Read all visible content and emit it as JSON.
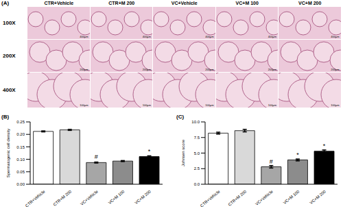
{
  "panel_a": {
    "label": "(A)",
    "columns": [
      "CTR+Vehicle",
      "CTR+M 200",
      "VC+Vehicle",
      "VC+M 100",
      "VC+M 200"
    ],
    "rows": [
      {
        "magnification": "100X",
        "scale_bar": "400μm"
      },
      {
        "magnification": "200X",
        "scale_bar": "200μm"
      },
      {
        "magnification": "400X",
        "scale_bar": "100μm"
      }
    ]
  },
  "chart_data": [
    {
      "type": "bar",
      "title": "(B)",
      "y_label": "Spermatogenic cell density",
      "categories": [
        "CTR+Vehicle",
        "CTR+M 200",
        "VC+Vehicle",
        "VC+M 100",
        "VC+M 200"
      ],
      "values": [
        0.212,
        0.218,
        0.087,
        0.093,
        0.111
      ],
      "errors": [
        0.002,
        0.002,
        0.002,
        0.002,
        0.003
      ],
      "annotations": [
        null,
        null,
        "#",
        null,
        "*"
      ],
      "colors": [
        "#ffffff",
        "#d9d9d9",
        "#a6a6a6",
        "#8c8c8c",
        "#000000"
      ],
      "ylim": [
        0,
        0.25
      ],
      "yticks": [
        {
          "value": 0,
          "label": "0.00"
        },
        {
          "value": 0.05,
          "label": "0.05"
        },
        {
          "value": 0.1,
          "label": "0.10"
        },
        {
          "value": 0.15,
          "label": "0.15"
        },
        {
          "value": 0.2,
          "label": "0.20"
        },
        {
          "value": 0.25,
          "label": "0.25"
        }
      ],
      "grid": false
    },
    {
      "type": "bar",
      "title": "(C)",
      "y_label": "Johnsen score",
      "categories": [
        "CTR+Vehicle",
        "CTR+M 200",
        "VC+Vehicle",
        "VC+M 100",
        "VC+M 200"
      ],
      "values": [
        8.2,
        8.6,
        2.8,
        3.9,
        5.3
      ],
      "errors": [
        0.15,
        0.2,
        0.2,
        0.15,
        0.2
      ],
      "annotations": [
        null,
        null,
        "#",
        "*",
        "*"
      ],
      "colors": [
        "#ffffff",
        "#d9d9d9",
        "#a6a6a6",
        "#8c8c8c",
        "#000000"
      ],
      "ylim": [
        0,
        10
      ],
      "yticks": [
        {
          "value": 0,
          "label": "0.0"
        },
        2.5,
        {
          "value": 5,
          "label": "5.0"
        },
        7.5,
        {
          "value": 10,
          "label": "10.0"
        }
      ],
      "grid": false
    }
  ]
}
